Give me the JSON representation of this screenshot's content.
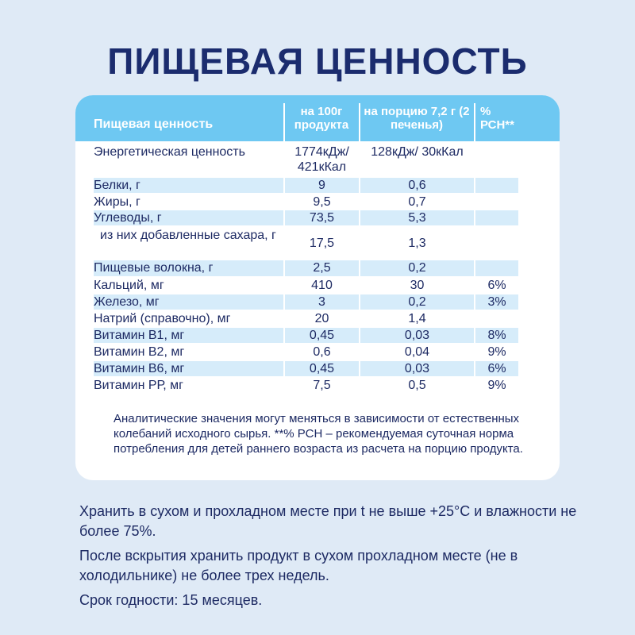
{
  "title": "ПИЩЕВАЯ ЦЕННОСТЬ",
  "table": {
    "headers": [
      "Пищевая ценность",
      "на 100г продукта",
      "на порцию 7,2 г (2 печенья)",
      "% РСН**"
    ],
    "rows": [
      {
        "name": "Энергетическая ценность",
        "per100": "1774кДж/ 421кКал",
        "portion": "128кДж/ 30кКал",
        "rsn": ""
      },
      {
        "name": "Белки, г",
        "per100": "9",
        "portion": "0,6",
        "rsn": ""
      },
      {
        "name": "Жиры, г",
        "per100": "9,5",
        "portion": "0,7",
        "rsn": ""
      },
      {
        "name": "Углеводы, г",
        "per100": "73,5",
        "portion": "5,3",
        "rsn": ""
      },
      {
        "name": "из них добавленные сахара, г",
        "per100": "17,5",
        "portion": "1,3",
        "rsn": ""
      },
      {
        "name": "Пищевые волокна, г",
        "per100": "2,5",
        "portion": "0,2",
        "rsn": ""
      },
      {
        "name": "Кальций, мг",
        "per100": "410",
        "portion": "30",
        "rsn": "6%"
      },
      {
        "name": "Железо, мг",
        "per100": "3",
        "portion": "0,2",
        "rsn": "3%"
      },
      {
        "name": "Натрий (справочно), мг",
        "per100": "20",
        "portion": "1,4",
        "rsn": ""
      },
      {
        "name": "Витамин В1, мг",
        "per100": "0,45",
        "portion": "0,03",
        "rsn": "8%"
      },
      {
        "name": "Витамин В2, мг",
        "per100": "0,6",
        "portion": "0,04",
        "rsn": "9%"
      },
      {
        "name": "Витамин В6, мг",
        "per100": "0,45",
        "portion": "0,03",
        "rsn": "6%"
      },
      {
        "name": "Витамин РР, мг",
        "per100": "7,5",
        "portion": "0,5",
        "rsn": "9%"
      }
    ]
  },
  "note": "Аналитические значения могут меняться в зависимости от естественных колебаний исходного сырья. **% РСН – рекомендуемая суточная норма потребления для детей раннего возраста из расчета на порцию продукта.",
  "storage": [
    "Хранить в сухом и прохладном месте при t не выше +25°С и влажности не более 75%.",
    "После вскрытия хранить продукт в сухом прохладном месте (не в холодильнике) не более трех недель.",
    "Срок годности: 15 месяцев."
  ]
}
